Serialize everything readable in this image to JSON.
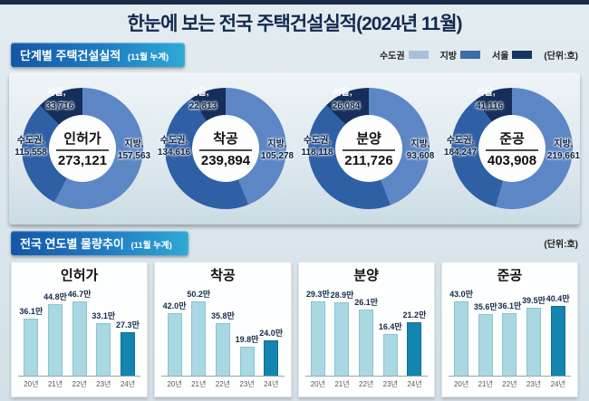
{
  "page": {
    "title": "한눈에 보는 전국 주택건설실적(2024년 11월)"
  },
  "section1": {
    "title": "단계별 주택건설실적",
    "subtitle": "(11월 누계)",
    "legend": [
      {
        "label": "수도권",
        "color": "#a9c0d8"
      },
      {
        "label": "지방",
        "color": "#3d6ea5"
      },
      {
        "label": "서울",
        "color": "#16355e"
      }
    ],
    "unit_label": "(단위:호)"
  },
  "section2": {
    "title": "전국 연도별 물량추이",
    "subtitle": "(11월 누계)",
    "unit_label": "(단위:호)"
  },
  "colors": {
    "donut_jibang": "#5d86c4",
    "donut_sudogwon": "#2f5fa5",
    "donut_seoul": "#152f5a",
    "bar_normal": "#a9d8e3",
    "bar_highlight": "#1484b0",
    "header_gradient_start": "#1356a8",
    "header_gradient_end": "#2fa9d4",
    "title_navy": "#13294e"
  },
  "chart_data": [
    {
      "type": "pie",
      "title": "인허가",
      "total": 273121,
      "total_label": "273,121",
      "values": {
        "seoul": 33716,
        "sudogwon": 115558,
        "jibang": 157563
      },
      "labels": {
        "seoul_name": "서울,",
        "seoul_value": "33,716",
        "sudo_name": "수도권,",
        "sudo_value": "115,558",
        "jibang_name": "지방,",
        "jibang_value": "157,563"
      }
    },
    {
      "type": "pie",
      "title": "착공",
      "total": 239894,
      "total_label": "239,894",
      "values": {
        "seoul": 22813,
        "sudogwon": 134616,
        "jibang": 105278
      },
      "labels": {
        "seoul_name": "서울,",
        "seoul_value": "22,813",
        "sudo_name": "수도권,",
        "sudo_value": "134,616",
        "jibang_name": "지방,",
        "jibang_value": "105,278"
      }
    },
    {
      "type": "pie",
      "title": "분양",
      "total": 211726,
      "total_label": "211,726",
      "values": {
        "seoul": 26084,
        "sudogwon": 118118,
        "jibang": 93608
      },
      "labels": {
        "seoul_name": "서울,",
        "seoul_value": "26,084",
        "sudo_name": "수도권,",
        "sudo_value": "118,118",
        "jibang_name": "지방,",
        "jibang_value": "93,608"
      }
    },
    {
      "type": "pie",
      "title": "준공",
      "total": 403908,
      "total_label": "403,908",
      "values": {
        "seoul": 41116,
        "sudogwon": 184247,
        "jibang": 219661
      },
      "labels": {
        "seoul_name": "서울,",
        "seoul_value": "41,116",
        "sudo_name": "수도권,",
        "sudo_value": "184,247",
        "jibang_name": "지방,",
        "jibang_value": "219,661"
      }
    },
    {
      "type": "bar",
      "title": "인허가",
      "categories": [
        "20년",
        "21년",
        "22년",
        "23년",
        "24년"
      ],
      "values": [
        36.1,
        44.8,
        46.7,
        33.1,
        27.3
      ],
      "value_labels": [
        "36.1만",
        "44.8만",
        "46.7만",
        "33.1만",
        "27.3만"
      ],
      "highlight_index": 4,
      "unit": "만호"
    },
    {
      "type": "bar",
      "title": "착공",
      "categories": [
        "20년",
        "21년",
        "22년",
        "23년",
        "24년"
      ],
      "values": [
        42.0,
        50.2,
        35.8,
        19.8,
        24.0
      ],
      "value_labels": [
        "42.0만",
        "50.2만",
        "35.8만",
        "19.8만",
        "24.0만"
      ],
      "highlight_index": 4,
      "unit": "만호"
    },
    {
      "type": "bar",
      "title": "분양",
      "categories": [
        "20년",
        "21년",
        "22년",
        "23년",
        "24년"
      ],
      "values": [
        29.3,
        28.9,
        26.1,
        16.4,
        21.2
      ],
      "value_labels": [
        "29.3만",
        "28.9만",
        "26.1만",
        "16.4만",
        "21.2만"
      ],
      "highlight_index": 4,
      "unit": "만호"
    },
    {
      "type": "bar",
      "title": "준공",
      "categories": [
        "20년",
        "21년",
        "22년",
        "23년",
        "24년"
      ],
      "values": [
        43.0,
        35.6,
        36.1,
        39.5,
        40.4
      ],
      "value_labels": [
        "43.0만",
        "35.6만",
        "36.1만",
        "39.5만",
        "40.4만"
      ],
      "highlight_index": 4,
      "unit": "만호"
    }
  ]
}
